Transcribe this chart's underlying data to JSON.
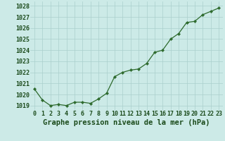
{
  "title": "Graphe pression niveau de la mer (hPa)",
  "x_values": [
    0,
    1,
    2,
    3,
    4,
    5,
    6,
    7,
    8,
    9,
    10,
    11,
    12,
    13,
    14,
    15,
    16,
    17,
    18,
    19,
    20,
    21,
    22,
    23
  ],
  "y_values": [
    1020.5,
    1019.5,
    1019.0,
    1019.1,
    1019.0,
    1019.3,
    1019.3,
    1019.2,
    1019.6,
    1020.1,
    1021.6,
    1022.0,
    1022.2,
    1022.3,
    1022.8,
    1023.8,
    1024.0,
    1025.0,
    1025.5,
    1026.5,
    1026.6,
    1027.2,
    1027.5,
    1027.8
  ],
  "line_color": "#2d6a2d",
  "marker_color": "#2d6a2d",
  "background_color": "#cceae7",
  "grid_color": "#aacfcc",
  "title_color": "#1a4a1a",
  "tick_color": "#1a4a1a",
  "ylim": [
    1018.6,
    1028.4
  ],
  "yticks": [
    1019,
    1020,
    1021,
    1022,
    1023,
    1024,
    1025,
    1026,
    1027,
    1028
  ],
  "xticks": [
    0,
    1,
    2,
    3,
    4,
    5,
    6,
    7,
    8,
    9,
    10,
    11,
    12,
    13,
    14,
    15,
    16,
    17,
    18,
    19,
    20,
    21,
    22,
    23
  ],
  "title_fontsize": 7.5,
  "tick_fontsize": 6.0
}
